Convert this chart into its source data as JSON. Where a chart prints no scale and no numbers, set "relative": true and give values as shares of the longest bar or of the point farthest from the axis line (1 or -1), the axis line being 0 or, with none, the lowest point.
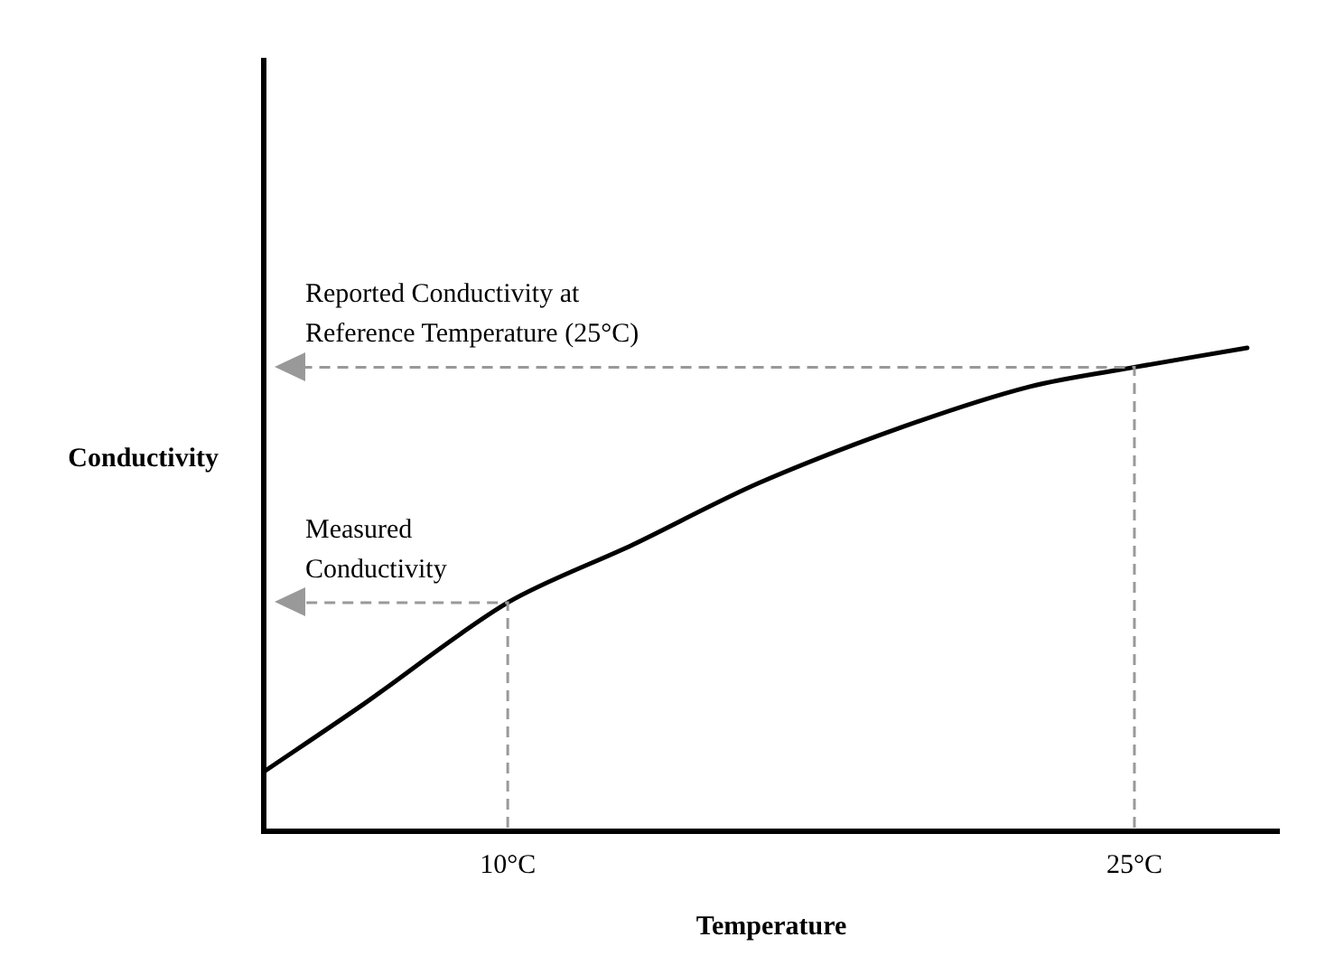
{
  "chart_data": {
    "type": "line",
    "relative": true,
    "xlabel": "Temperature",
    "ylabel": "Conductivity",
    "xlim": [
      4.16,
      28.46
    ],
    "xticks": [
      {
        "value": 10,
        "label": "10°C"
      },
      {
        "value": 25,
        "label": "25°C"
      }
    ],
    "grid": false,
    "legend": false,
    "marker": "none",
    "line_style": "solid",
    "series": [
      {
        "color": "#000000",
        "x": [
          4.16,
          6.5,
          10,
          13,
          16,
          19.47,
          22.5,
          25,
          27.7
        ],
        "values": [
          0.123,
          0.26,
          0.473,
          0.593,
          0.72,
          0.837,
          0.92,
          0.96,
          1
        ]
      }
    ],
    "annotations": [
      "Measured\nConductivity",
      "Reported Conductivity at\nReference Temperature (25°C)"
    ]
  }
}
